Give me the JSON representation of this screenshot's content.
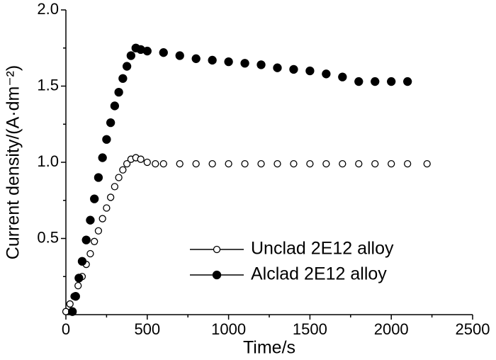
{
  "chart_data": {
    "type": "scatter",
    "xlabel": "Time/s",
    "ylabel": "Current density/(A·dm⁻²)",
    "xlim": [
      0,
      2500
    ],
    "xticks": [
      0,
      500,
      1000,
      1500,
      2000,
      2500
    ],
    "ylim": [
      0,
      2
    ],
    "yticks": [
      0.5,
      {
        "value": 1,
        "label": "1.0"
      },
      1.5,
      {
        "value": 2,
        "label": "2.0"
      }
    ],
    "legend": "lower right",
    "series": [
      {
        "name": "Unclad 2E12 alloy",
        "color": "#000000",
        "filled": false,
        "x": [
          0,
          25,
          50,
          75,
          100,
          125,
          150,
          175,
          200,
          225,
          250,
          275,
          300,
          325,
          350,
          375,
          400,
          430,
          460,
          500,
          550,
          600,
          700,
          800,
          900,
          1000,
          1100,
          1200,
          1300,
          1400,
          1500,
          1600,
          1700,
          1800,
          1900,
          2000,
          2100,
          2220
        ],
        "values": [
          0.02,
          0.07,
          0.12,
          0.19,
          0.25,
          0.33,
          0.4,
          0.48,
          0.55,
          0.63,
          0.7,
          0.77,
          0.84,
          0.9,
          0.95,
          0.99,
          1.02,
          1.03,
          1.02,
          1.0,
          0.99,
          0.99,
          0.99,
          0.99,
          0.99,
          0.99,
          0.99,
          0.99,
          0.99,
          0.99,
          0.99,
          0.99,
          0.99,
          0.99,
          0.99,
          0.99,
          0.99,
          0.99
        ]
      },
      {
        "name": "Alclad 2E12 alloy",
        "color": "#000000",
        "filled": true,
        "x": [
          40,
          60,
          80,
          100,
          125,
          150,
          175,
          200,
          225,
          250,
          275,
          300,
          325,
          350,
          375,
          400,
          430,
          460,
          500,
          600,
          700,
          800,
          900,
          1000,
          1100,
          1200,
          1300,
          1400,
          1500,
          1600,
          1700,
          1800,
          1900,
          2000,
          2100
        ],
        "values": [
          0.02,
          0.12,
          0.24,
          0.35,
          0.49,
          0.62,
          0.76,
          0.9,
          1.03,
          1.15,
          1.26,
          1.37,
          1.46,
          1.55,
          1.63,
          1.7,
          1.75,
          1.74,
          1.73,
          1.72,
          1.7,
          1.68,
          1.67,
          1.66,
          1.65,
          1.64,
          1.62,
          1.61,
          1.6,
          1.58,
          1.56,
          1.53,
          1.53,
          1.53,
          1.53
        ]
      }
    ]
  }
}
